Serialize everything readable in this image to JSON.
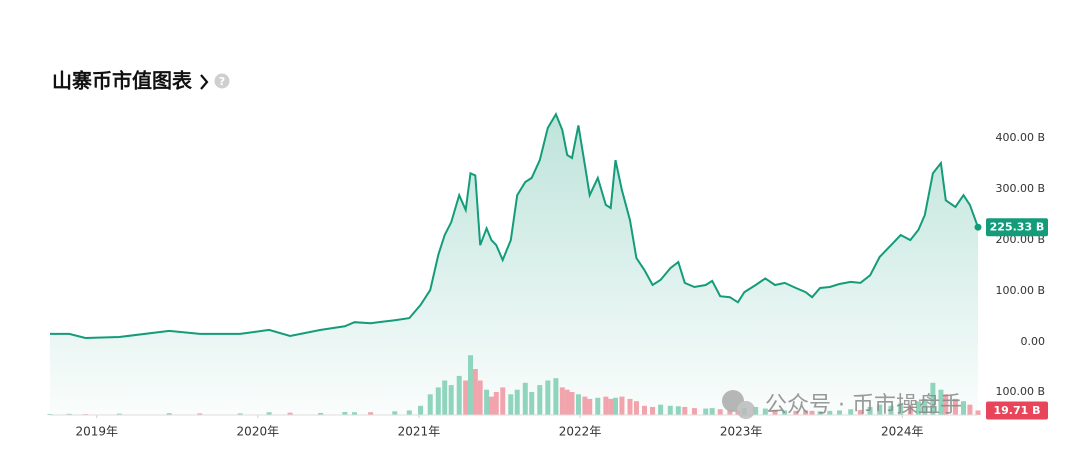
{
  "chart_data": {
    "type": "area",
    "title": "山寨币市值图表",
    "help_icon": "?",
    "watermark": "公众号 · 币市操盘手",
    "color": "#149c7a",
    "x": [
      2018.71,
      2018.83,
      2018.93,
      2019.14,
      2019.45,
      2019.64,
      2019.89,
      2020.07,
      2020.2,
      2020.39,
      2020.54,
      2020.6,
      2020.7,
      2020.85,
      2020.94,
      2021.01,
      2021.07,
      2021.12,
      2021.16,
      2021.2,
      2021.25,
      2021.29,
      2021.32,
      2021.35,
      2021.38,
      2021.42,
      2021.45,
      2021.48,
      2021.52,
      2021.57,
      2021.61,
      2021.66,
      2021.7,
      2021.75,
      2021.8,
      2021.85,
      2021.89,
      2021.92,
      2021.95,
      2021.99,
      2022.03,
      2022.06,
      2022.11,
      2022.16,
      2022.19,
      2022.22,
      2022.26,
      2022.31,
      2022.35,
      2022.4,
      2022.45,
      2022.5,
      2022.56,
      2022.61,
      2022.65,
      2022.71,
      2022.78,
      2022.82,
      2022.87,
      2022.93,
      2022.98,
      2023.02,
      2023.09,
      2023.15,
      2023.21,
      2023.27,
      2023.34,
      2023.4,
      2023.44,
      2023.49,
      2023.55,
      2023.61,
      2023.68,
      2023.74,
      2023.8,
      2023.86,
      2023.93,
      2023.99,
      2024.05,
      2024.1,
      2024.14,
      2024.19,
      2024.24,
      2024.27,
      2024.33,
      2024.38,
      2024.42,
      2024.47
    ],
    "values": [
      16,
      16,
      8,
      10,
      22,
      16,
      16,
      24,
      12,
      24,
      31,
      39,
      37,
      43,
      47,
      73,
      102,
      171,
      210,
      235,
      288,
      259,
      331,
      327,
      190,
      223,
      200,
      190,
      161,
      200,
      288,
      314,
      322,
      357,
      420,
      447,
      416,
      367,
      361,
      425,
      347,
      288,
      322,
      269,
      263,
      357,
      298,
      239,
      165,
      141,
      112,
      122,
      145,
      157,
      116,
      108,
      112,
      120,
      90,
      88,
      78,
      98,
      112,
      125,
      112,
      116,
      106,
      98,
      88,
      106,
      108,
      114,
      118,
      116,
      131,
      167,
      190,
      210,
      200,
      220,
      249,
      331,
      351,
      278,
      265,
      288,
      269,
      225.33
    ],
    "current_label": "225.33 B",
    "volume": {
      "axis": "y2",
      "up_color": "#8fd4bd",
      "down_color": "#f2a4ad",
      "label_color": "#e8455a",
      "values": [
        4,
        5,
        4,
        6,
        8,
        7,
        7,
        12,
        10,
        9,
        13,
        12,
        12,
        16,
        20,
        40,
        90,
        120,
        150,
        130,
        170,
        150,
        260,
        200,
        150,
        110,
        80,
        100,
        120,
        90,
        110,
        140,
        100,
        130,
        150,
        160,
        120,
        110,
        100,
        90,
        80,
        70,
        75,
        80,
        70,
        75,
        80,
        70,
        60,
        40,
        35,
        45,
        40,
        38,
        35,
        30,
        28,
        30,
        25,
        22,
        20,
        30,
        35,
        28,
        22,
        20,
        18,
        20,
        18,
        16,
        18,
        20,
        25,
        22,
        35,
        45,
        40,
        50,
        45,
        60,
        70,
        140,
        110,
        90,
        70,
        60,
        45,
        19.71
      ],
      "current_label": "19.71 B"
    },
    "xlim": [
      2018.71,
      2024.47
    ],
    "xticks": [
      {
        "value": 2019,
        "label": "2019年"
      },
      {
        "value": 2020,
        "label": "2020年"
      },
      {
        "value": 2021,
        "label": "2021年"
      },
      {
        "value": 2022,
        "label": "2022年"
      },
      {
        "value": 2023,
        "label": "2023年"
      },
      {
        "value": 2024,
        "label": "2024年"
      }
    ],
    "ylim": [
      -143,
      465
    ],
    "yticks": [
      {
        "value": 400,
        "label": "400.00 B"
      },
      {
        "value": 300,
        "label": "300.00 B"
      },
      {
        "value": 200,
        "label": "200.00 B"
      },
      {
        "value": 100,
        "label": "100.00 B"
      },
      {
        "value": 0,
        "label": "0.00"
      }
    ],
    "y2lim": [
      0,
      300
    ],
    "y2ticks": [
      {
        "value": 100,
        "label": "100.00 B"
      }
    ]
  }
}
